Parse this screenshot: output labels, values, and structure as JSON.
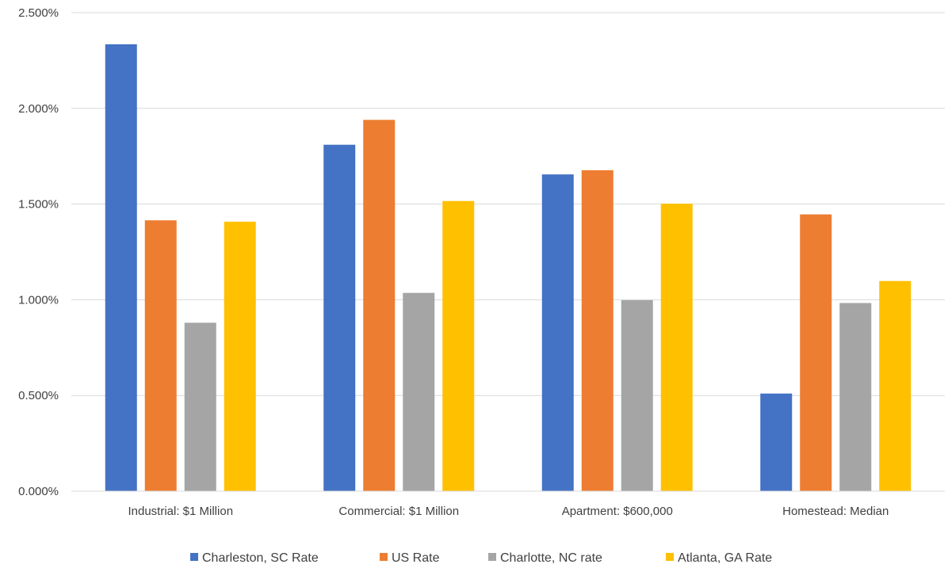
{
  "chart_data": {
    "type": "bar",
    "title": "",
    "xlabel": "",
    "ylabel": "",
    "ylim": [
      0,
      0.025
    ],
    "y_ticks": [
      "0.000%",
      "0.500%",
      "1.000%",
      "1.500%",
      "2.000%",
      "2.500%"
    ],
    "categories": [
      "Industrial: $1 Million",
      "Commercial: $1 Million",
      "Apartment: $600,000",
      "Homestead: Median"
    ],
    "series": [
      {
        "name": "Charleston, SC Rate",
        "color": "#4472C4",
        "values": [
          0.02335,
          0.0181,
          0.01655,
          0.0051
        ]
      },
      {
        "name": "US Rate",
        "color": "#ED7D31",
        "values": [
          0.01415,
          0.0194,
          0.01677,
          0.01446
        ]
      },
      {
        "name": "Charlotte, NC rate",
        "color": "#A5A5A5",
        "values": [
          0.0088,
          0.01036,
          0.00998,
          0.00983
        ]
      },
      {
        "name": "Atlanta, GA Rate",
        "color": "#FFC000",
        "values": [
          0.01408,
          0.01516,
          0.01502,
          0.01098
        ]
      }
    ],
    "grid": true,
    "legend_position": "bottom"
  }
}
